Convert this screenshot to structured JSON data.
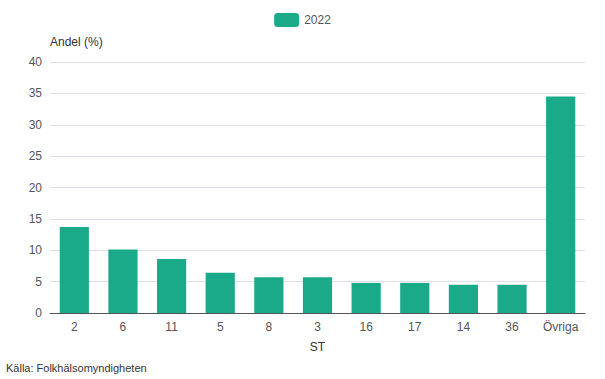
{
  "chart_data": {
    "type": "bar",
    "categories": [
      "2",
      "6",
      "11",
      "5",
      "8",
      "3",
      "16",
      "17",
      "14",
      "36",
      "Övriga"
    ],
    "series": [
      {
        "name": "2022",
        "color": "#1aaa8a",
        "values": [
          13.7,
          10.1,
          8.6,
          6.4,
          5.7,
          5.7,
          4.8,
          4.8,
          4.5,
          4.5,
          34.5
        ]
      }
    ],
    "xlabel": "ST",
    "ylabel": "Andel (%)",
    "annotation": "Källa: Folkhälsomyndigheten",
    "ylim": [
      0,
      40
    ],
    "yticks": [
      0,
      5,
      10,
      15,
      20,
      25,
      30,
      35,
      40
    ],
    "grid": true,
    "legend": "top"
  }
}
